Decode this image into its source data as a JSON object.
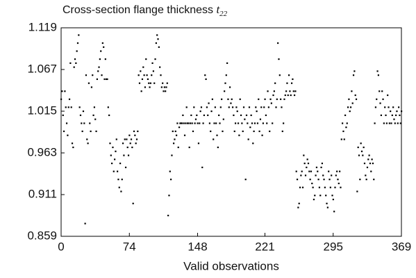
{
  "chart_data": {
    "type": "scatter",
    "title": "Cross-section flange thickness",
    "title_symbol": "t",
    "title_subscript": "22",
    "xlabel": "Valid observations",
    "xlim": [
      0,
      369
    ],
    "xticks": [
      0,
      74,
      148,
      221,
      295,
      369
    ],
    "ylim": [
      0.859,
      1.119
    ],
    "yticks": [
      0.859,
      0.911,
      0.963,
      1.015,
      1.067,
      1.119
    ],
    "color": "#000000",
    "x": [
      0,
      1,
      2,
      3,
      4,
      5,
      6,
      7,
      8,
      9,
      10,
      11,
      12,
      13,
      14,
      15,
      16,
      17,
      18,
      19,
      20,
      21,
      22,
      23,
      24,
      25,
      26,
      27,
      28,
      29,
      30,
      31,
      32,
      33,
      34,
      35,
      36,
      37,
      38,
      39,
      40,
      41,
      42,
      43,
      44,
      45,
      46,
      47,
      48,
      49,
      50,
      51,
      52,
      53,
      54,
      55,
      56,
      57,
      58,
      59,
      60,
      61,
      62,
      63,
      64,
      65,
      66,
      67,
      68,
      69,
      70,
      71,
      72,
      73,
      74,
      75,
      76,
      77,
      78,
      79,
      80,
      81,
      82,
      83,
      84,
      85,
      86,
      87,
      88,
      89,
      90,
      91,
      92,
      93,
      94,
      95,
      96,
      97,
      98,
      99,
      100,
      101,
      102,
      103,
      104,
      105,
      106,
      107,
      108,
      109,
      110,
      111,
      112,
      113,
      114,
      115,
      116,
      117,
      118,
      119,
      120,
      121,
      122,
      123,
      124,
      125,
      126,
      127,
      128,
      129,
      130,
      131,
      132,
      133,
      134,
      135,
      136,
      137,
      138,
      139,
      140,
      141,
      142,
      143,
      144,
      145,
      146,
      147,
      148,
      149,
      150,
      151,
      152,
      153,
      154,
      155,
      156,
      157,
      158,
      159,
      160,
      161,
      162,
      163,
      164,
      165,
      166,
      167,
      168,
      169,
      170,
      171,
      172,
      173,
      174,
      175,
      176,
      177,
      178,
      179,
      180,
      181,
      182,
      183,
      184,
      185,
      186,
      187,
      188,
      189,
      190,
      191,
      192,
      193,
      194,
      195,
      196,
      197,
      198,
      199,
      200,
      201,
      202,
      203,
      204,
      205,
      206,
      207,
      208,
      209,
      210,
      211,
      212,
      213,
      214,
      215,
      216,
      217,
      218,
      219,
      220,
      221,
      222,
      223,
      224,
      225,
      226,
      227,
      228,
      229,
      230,
      231,
      232,
      233,
      234,
      235,
      236,
      237,
      238,
      239,
      240,
      241,
      242,
      243,
      244,
      245,
      246,
      247,
      248,
      249,
      250,
      251,
      252,
      253,
      254,
      255,
      256,
      257,
      258,
      259,
      260,
      261,
      262,
      263,
      264,
      265,
      266,
      267,
      268,
      269,
      270,
      271,
      272,
      273,
      274,
      275,
      276,
      277,
      278,
      279,
      280,
      281,
      282,
      283,
      284,
      285,
      286,
      287,
      288,
      289,
      290,
      291,
      292,
      293,
      294,
      295,
      296,
      297,
      298,
      299,
      300,
      301,
      302,
      303,
      304,
      305,
      306,
      307,
      308,
      309,
      310,
      311,
      312,
      313,
      314,
      315,
      316,
      317,
      318,
      319,
      320,
      321,
      322,
      323,
      324,
      325,
      326,
      327,
      328,
      329,
      330,
      331,
      332,
      333,
      334,
      335,
      336,
      337,
      338,
      339,
      340,
      341,
      342,
      343,
      344,
      345,
      346,
      347,
      348,
      349,
      350,
      351,
      352,
      353,
      354,
      355,
      356,
      357,
      358,
      359,
      360,
      361,
      362,
      363,
      364,
      365,
      366,
      367,
      368,
      369
    ],
    "values": [
      1.03,
      1.04,
      1.01,
      0.99,
      1.04,
      1.02,
      1.0,
      0.985,
      1.02,
      1.03,
      1.075,
      1.02,
      0.975,
      0.97,
      1.07,
      1.08,
      1.075,
      1.09,
      1.1,
      1.11,
      1.02,
      1.01,
      1.0,
      0.99,
      1.015,
      1.0,
      0.875,
      1.06,
      0.98,
      0.975,
      1.05,
      1.0,
      0.99,
      1.045,
      1.06,
      1.01,
      1.02,
      1.005,
      0.99,
      1.055,
      1.065,
      1.07,
      1.08,
      1.09,
      1.06,
      1.1,
      1.095,
      1.055,
      1.08,
      1.055,
      1.055,
      1.02,
      1.01,
      0.975,
      0.96,
      0.95,
      0.97,
      0.94,
      0.955,
      0.965,
      0.98,
      0.94,
      0.93,
      0.92,
      0.95,
      0.915,
      0.93,
      0.975,
      0.96,
      0.98,
      0.945,
      0.98,
      0.97,
      0.96,
      0.985,
      0.975,
      0.98,
      0.97,
      0.9,
      0.99,
      0.985,
      0.975,
      0.98,
      0.99,
      1.06,
      1.05,
      1.065,
      1.04,
      1.055,
      1.07,
      1.06,
      1.045,
      1.08,
      1.06,
      1.055,
      1.05,
      1.045,
      1.05,
      1.06,
      1.075,
      1.065,
      1.05,
      1.08,
      1.1,
      1.11,
      1.105,
      1.095,
      1.07,
      1.06,
      1.045,
      1.05,
      1.04,
      1.045,
      1.04,
      1.045,
      1.05,
      0.885,
      0.91,
      0.94,
      0.93,
      0.96,
      0.99,
      0.975,
      0.98,
      0.99,
      0.985,
      1.0,
      0.97,
      0.995,
      1.0,
      1.0,
      1.0,
      1.01,
      1.0,
      0.985,
      1.0,
      1.02,
      1.0,
      1.0,
      0.97,
      1.0,
      1.01,
      1.0,
      0.99,
      1.02,
      1.0,
      1.005,
      1.01,
      1.0,
      0.975,
      1.0,
      1.015,
      1.02,
      0.945,
      1.0,
      1.01,
      1.06,
      1.055,
      1.02,
      1.01,
      1.025,
      1.0,
      0.99,
      1.015,
      1.03,
      0.98,
      1.0,
      1.02,
      1.0,
      0.985,
      0.97,
      1.01,
      1.0,
      1.02,
      1.03,
      0.99,
      1.005,
      1.04,
      1.05,
      1.06,
      1.075,
      1.03,
      1.02,
      1.045,
      1.025,
      1.03,
      1.02,
      1.01,
      0.99,
      1.0,
      1.02,
      1.015,
      1.0,
      0.985,
      1.03,
      1.01,
      1.0,
      0.99,
      1.02,
      1.005,
      0.93,
      1.01,
      1.0,
      0.98,
      1.02,
      0.995,
      1.01,
      1.0,
      0.975,
      0.99,
      1.0,
      1.02,
      1.015,
      1.0,
      1.03,
      0.99,
      1.005,
      1.02,
      0.985,
      1.0,
      1.02,
      1.03,
      1.01,
      1.0,
      1.04,
      1.02,
      0.99,
      1.03,
      1.025,
      1.0,
      1.035,
      1.04,
      1.05,
      1.02,
      1.03,
      1.1,
      1.08,
      1.06,
      1.03,
      1.02,
      0.99,
      1.0,
      1.03,
      1.035,
      1.04,
      1.05,
      1.035,
      1.06,
      1.04,
      1.035,
      1.05,
      1.055,
      1.04,
      1.035,
      1.04,
      0.94,
      0.93,
      0.895,
      0.9,
      0.92,
      0.935,
      0.94,
      0.92,
      0.96,
      0.95,
      0.935,
      0.945,
      0.955,
      0.95,
      0.94,
      0.93,
      0.94,
      0.925,
      0.92,
      0.905,
      0.91,
      0.935,
      0.945,
      0.94,
      0.93,
      0.92,
      0.91,
      0.945,
      0.95,
      0.935,
      0.93,
      0.92,
      0.91,
      0.9,
      0.895,
      0.94,
      0.93,
      0.92,
      0.935,
      0.91,
      0.905,
      0.89,
      0.92,
      0.935,
      0.94,
      0.93,
      0.925,
      0.94,
      0.92,
      0.98,
      1.0,
      0.99,
      0.98,
      1.01,
      0.995,
      1.0,
      1.02,
      1.03,
      1.015,
      1.02,
      1.04,
      1.025,
      1.06,
      1.065,
      1.035,
      1.03,
      0.915,
      0.97,
      0.96,
      0.93,
      0.975,
      0.965,
      0.96,
      0.97,
      0.95,
      0.935,
      0.93,
      0.945,
      0.955,
      0.96,
      0.95,
      0.94,
      0.955,
      0.95,
      0.93,
      1.0,
      1.02,
      1.03,
      1.065,
      1.06,
      1.04,
      1.025,
      1.01,
      1.04,
      1.03,
      1.0,
      1.02,
      1.01,
      1.0,
      1.035,
      1.02,
      1.0,
      1.015,
      1.0,
      1.01,
      1.02,
      1.005,
      1.0,
      1.01,
      1.015,
      1.0,
      1.02,
      1.01,
      1.0,
      1.015
    ]
  }
}
